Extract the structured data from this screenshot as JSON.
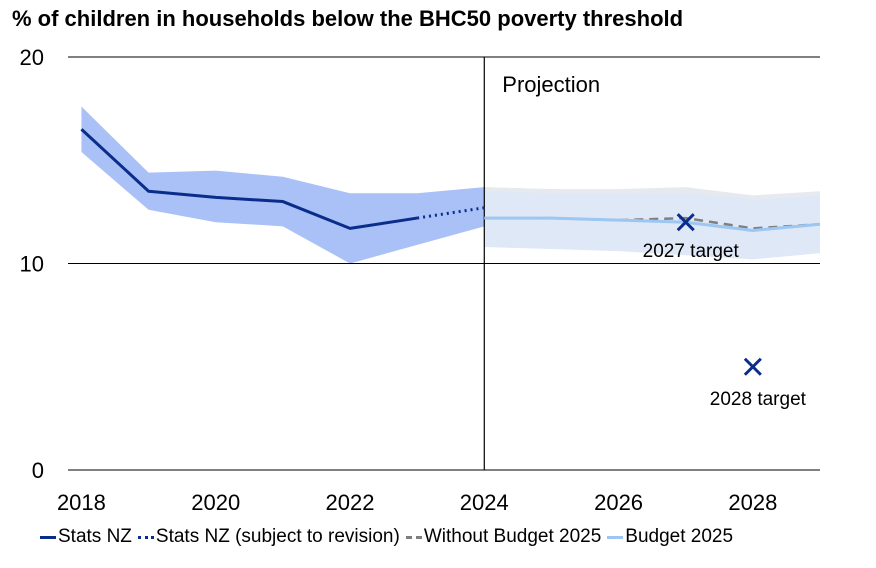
{
  "colors": {
    "stats": "#0a2d8c",
    "band_hist": "#a9c1f6",
    "band_proj": "#dfe8f6",
    "band_proj_grey": "#e6e9ee",
    "without": "#7f7f7f",
    "budget": "#9dc6f2",
    "target": "#0a2d8c"
  },
  "chart_data": {
    "type": "line",
    "title": "% of children in households below the BHC50 poverty threshold",
    "xlim": [
      2017.8,
      2029.0
    ],
    "ylim": [
      0,
      20
    ],
    "xticks": [
      "2018",
      "2020",
      "2022",
      "2024",
      "2026",
      "2028"
    ],
    "xtick_values": [
      2018,
      2020,
      2022,
      2024,
      2026,
      2028
    ],
    "yticks": [
      "0",
      "10",
      "20"
    ],
    "ytick_values": [
      0,
      10,
      20
    ],
    "projection_start": 2024,
    "projection_label": "Projection",
    "series": [
      {
        "name": "Stats NZ",
        "style": "solid",
        "x": [
          2018,
          2019,
          2020,
          2021,
          2022,
          2023
        ],
        "y": [
          16.5,
          13.5,
          13.2,
          13.0,
          11.7,
          12.2
        ]
      },
      {
        "name": "Stats NZ (subject to revision)",
        "style": "dotted",
        "x": [
          2023,
          2024
        ],
        "y": [
          12.2,
          12.7
        ]
      },
      {
        "name": "Without Budget 2025",
        "style": "dashed",
        "x": [
          2024,
          2025,
          2026,
          2027,
          2028,
          2029
        ],
        "y": [
          12.2,
          12.2,
          12.1,
          12.2,
          11.7,
          11.9
        ]
      },
      {
        "name": "Budget 2025",
        "style": "solid",
        "x": [
          2024,
          2025,
          2026,
          2027,
          2028,
          2029
        ],
        "y": [
          12.2,
          12.2,
          12.1,
          12.0,
          11.6,
          11.9
        ]
      }
    ],
    "bands": [
      {
        "name": "historical",
        "x": [
          2018,
          2019,
          2020,
          2021,
          2022,
          2023,
          2024
        ],
        "upper": [
          17.6,
          14.4,
          14.5,
          14.2,
          13.4,
          13.4,
          13.7
        ],
        "lower": [
          15.4,
          12.6,
          12.0,
          11.8,
          10.0,
          10.9,
          11.8
        ]
      },
      {
        "name": "projection",
        "x": [
          2024,
          2025,
          2026,
          2027,
          2028,
          2029
        ],
        "upper": [
          13.7,
          13.6,
          13.5,
          13.5,
          13.1,
          13.3
        ],
        "lower": [
          10.8,
          10.7,
          10.6,
          10.4,
          10.2,
          10.5
        ]
      },
      {
        "name": "projection-without",
        "x": [
          2024,
          2025,
          2026,
          2027,
          2028,
          2029
        ],
        "upper": [
          13.7,
          13.6,
          13.6,
          13.7,
          13.3,
          13.5
        ],
        "lower": [
          13.5,
          13.4,
          13.4,
          13.4,
          13.1,
          13.3
        ]
      }
    ],
    "targets": [
      {
        "label": "2027 target",
        "x": 2027,
        "y": 12.0
      },
      {
        "label": "2028 target",
        "x": 2028,
        "y": 5.0
      }
    ],
    "legend": [
      {
        "label": "Stats NZ",
        "style": "solid",
        "color_key": "stats"
      },
      {
        "label": "Stats NZ (subject to revision)",
        "style": "dotted",
        "color_key": "stats"
      },
      {
        "label": "Without Budget 2025",
        "style": "dashed",
        "color_key": "without"
      },
      {
        "label": "Budget 2025",
        "style": "solid",
        "color_key": "budget"
      }
    ]
  }
}
